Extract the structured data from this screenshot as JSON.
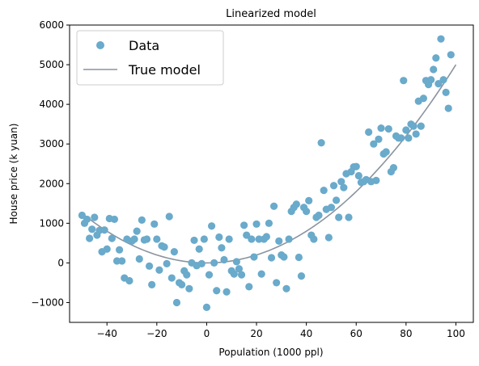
{
  "chart_data": {
    "type": "scatter",
    "title": "Linearized model",
    "xlabel": "Population (1000 ppl)",
    "ylabel": "House price (k yuan)",
    "xlim": [
      -55,
      107
    ],
    "ylim": [
      -1500,
      6000
    ],
    "xticks": [
      -40,
      -20,
      0,
      20,
      40,
      60,
      80,
      100
    ],
    "yticks": [
      -1000,
      0,
      1000,
      2000,
      3000,
      4000,
      5000,
      6000
    ],
    "xtick_labels": [
      "−40",
      "−20",
      "0",
      "20",
      "40",
      "60",
      "80",
      "100"
    ],
    "ytick_labels": [
      "−1000",
      "0",
      "1000",
      "2000",
      "3000",
      "4000",
      "5000",
      "6000"
    ],
    "grid": false,
    "legend_position": "top-left",
    "series": [
      {
        "name": "Data",
        "kind": "scatter",
        "color": "#6aaacb",
        "points": [
          [
            -50,
            1200
          ],
          [
            -49,
            1000
          ],
          [
            -48,
            1100
          ],
          [
            -47,
            620
          ],
          [
            -46,
            850
          ],
          [
            -45,
            1150
          ],
          [
            -44,
            700
          ],
          [
            -43,
            820
          ],
          [
            -42,
            280
          ],
          [
            -41,
            830
          ],
          [
            -40,
            350
          ],
          [
            -39,
            1120
          ],
          [
            -38,
            620
          ],
          [
            -37,
            1100
          ],
          [
            -36,
            50
          ],
          [
            -35,
            330
          ],
          [
            -34,
            50
          ],
          [
            -33,
            -380
          ],
          [
            -32,
            600
          ],
          [
            -31,
            -450
          ],
          [
            -30,
            550
          ],
          [
            -29,
            600
          ],
          [
            -28,
            800
          ],
          [
            -27,
            100
          ],
          [
            -26,
            1080
          ],
          [
            -25,
            580
          ],
          [
            -24,
            600
          ],
          [
            -23,
            -80
          ],
          [
            -22,
            -550
          ],
          [
            -21,
            980
          ],
          [
            -20,
            600
          ],
          [
            -19,
            -180
          ],
          [
            -18,
            430
          ],
          [
            -17,
            400
          ],
          [
            -16,
            -20
          ],
          [
            -15,
            1170
          ],
          [
            -14,
            -380
          ],
          [
            -13,
            280
          ],
          [
            -12,
            -1000
          ],
          [
            -11,
            -500
          ],
          [
            -10,
            -550
          ],
          [
            -9,
            -200
          ],
          [
            -8,
            -300
          ],
          [
            -7,
            -650
          ],
          [
            -6,
            0
          ],
          [
            -5,
            570
          ],
          [
            -4,
            -70
          ],
          [
            -3,
            350
          ],
          [
            -2,
            -20
          ],
          [
            -1,
            600
          ],
          [
            0,
            -1120
          ],
          [
            1,
            -300
          ],
          [
            2,
            930
          ],
          [
            3,
            0
          ],
          [
            4,
            -700
          ],
          [
            5,
            650
          ],
          [
            6,
            380
          ],
          [
            7,
            80
          ],
          [
            8,
            -730
          ],
          [
            9,
            600
          ],
          [
            10,
            -200
          ],
          [
            11,
            -280
          ],
          [
            12,
            30
          ],
          [
            13,
            -150
          ],
          [
            14,
            -300
          ],
          [
            15,
            950
          ],
          [
            16,
            700
          ],
          [
            17,
            -600
          ],
          [
            18,
            600
          ],
          [
            19,
            150
          ],
          [
            20,
            980
          ],
          [
            21,
            600
          ],
          [
            22,
            -280
          ],
          [
            23,
            600
          ],
          [
            24,
            660
          ],
          [
            25,
            1000
          ],
          [
            26,
            130
          ],
          [
            27,
            1430
          ],
          [
            28,
            -500
          ],
          [
            29,
            550
          ],
          [
            30,
            200
          ],
          [
            31,
            150
          ],
          [
            32,
            -650
          ],
          [
            33,
            600
          ],
          [
            34,
            1300
          ],
          [
            35,
            1400
          ],
          [
            36,
            1480
          ],
          [
            37,
            140
          ],
          [
            38,
            -330
          ],
          [
            39,
            1400
          ],
          [
            40,
            1300
          ],
          [
            41,
            1570
          ],
          [
            42,
            700
          ],
          [
            43,
            600
          ],
          [
            44,
            1150
          ],
          [
            45,
            1200
          ],
          [
            46,
            3030
          ],
          [
            47,
            1830
          ],
          [
            48,
            1350
          ],
          [
            49,
            640
          ],
          [
            50,
            1400
          ],
          [
            51,
            1950
          ],
          [
            52,
            1580
          ],
          [
            53,
            1150
          ],
          [
            54,
            2050
          ],
          [
            55,
            1900
          ],
          [
            56,
            2250
          ],
          [
            57,
            1150
          ],
          [
            58,
            2300
          ],
          [
            59,
            2420
          ],
          [
            60,
            2430
          ],
          [
            61,
            2200
          ],
          [
            62,
            2030
          ],
          [
            63,
            2050
          ],
          [
            64,
            2100
          ],
          [
            65,
            3300
          ],
          [
            66,
            2050
          ],
          [
            67,
            3000
          ],
          [
            68,
            2080
          ],
          [
            69,
            3120
          ],
          [
            70,
            3400
          ],
          [
            71,
            2750
          ],
          [
            72,
            2800
          ],
          [
            73,
            3380
          ],
          [
            74,
            2300
          ],
          [
            75,
            2400
          ],
          [
            76,
            3200
          ],
          [
            77,
            3150
          ],
          [
            78,
            3150
          ],
          [
            79,
            4600
          ],
          [
            80,
            3350
          ],
          [
            81,
            3150
          ],
          [
            82,
            3500
          ],
          [
            83,
            3450
          ],
          [
            84,
            3250
          ],
          [
            85,
            4080
          ],
          [
            86,
            3450
          ],
          [
            87,
            4150
          ],
          [
            88,
            4600
          ],
          [
            89,
            4500
          ],
          [
            90,
            4620
          ],
          [
            91,
            4880
          ],
          [
            92,
            5170
          ],
          [
            93,
            4520
          ],
          [
            94,
            5650
          ],
          [
            95,
            4620
          ],
          [
            96,
            4300
          ],
          [
            97,
            3900
          ],
          [
            98,
            5250
          ]
        ]
      },
      {
        "name": "True model",
        "kind": "line",
        "color": "#8b939f",
        "function": "0.5*x^2",
        "x_range": [
          -50,
          100
        ]
      }
    ]
  }
}
